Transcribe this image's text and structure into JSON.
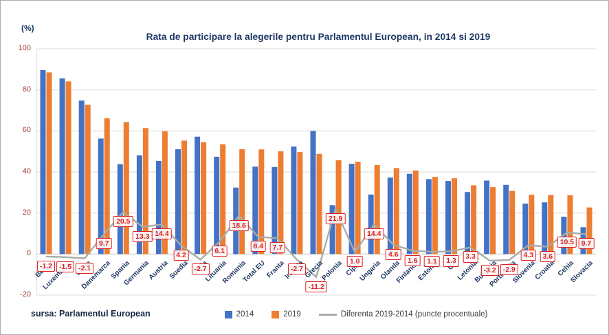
{
  "source_note": "sursa: Parlamentul European",
  "colors": {
    "bar_2014": "#4472c4",
    "bar_2019": "#ed7d31",
    "diff_line": "#a8aca7",
    "diff_label": "#e21f1f",
    "axis_tick": "#a23c35",
    "title_navy": "#1f3864",
    "grid": "#d9d9d9"
  },
  "chart_data": {
    "type": "bar",
    "title": "Rata de participare la alegerile pentru Parlamentul European, in 2014 si 2019",
    "ylabel": "(%)",
    "ylim": [
      -20,
      100
    ],
    "y_ticks": [
      100,
      80,
      60,
      40,
      20,
      0,
      -20
    ],
    "grid": true,
    "legend_position": "bottom",
    "categories": [
      "Belgia",
      "Luxemburg",
      "Malta",
      "Danemarca",
      "Spania",
      "Germania",
      "Austria",
      "Suedia",
      "Italia",
      "Lituania",
      "Romania",
      "Total EU",
      "Franta",
      "Irlanda",
      "Grecia",
      "Polonia",
      "Cipru",
      "Ungaria",
      "Olanda",
      "Finlanda",
      "Estonia",
      "UK",
      "Letonia",
      "Bulgaria",
      "Portugalia",
      "Slovenia",
      "Croatia",
      "Cehia",
      "Slovacia"
    ],
    "series": [
      {
        "name": "2014",
        "values": [
          89.6,
          85.6,
          74.8,
          56.3,
          43.8,
          48.1,
          45.4,
          51.1,
          57.2,
          47.4,
          32.4,
          42.6,
          42.4,
          52.4,
          60.0,
          23.8,
          44.0,
          29.0,
          37.3,
          39.1,
          36.5,
          35.6,
          30.2,
          35.8,
          33.7,
          24.6,
          25.2,
          18.2,
          13.1
        ]
      },
      {
        "name": "2019",
        "values": [
          88.5,
          84.1,
          72.7,
          66.1,
          64.3,
          61.4,
          59.8,
          55.3,
          54.5,
          53.5,
          51.1,
          51.0,
          50.1,
          49.7,
          48.8,
          45.7,
          45.0,
          43.4,
          41.9,
          40.7,
          37.6,
          36.9,
          33.5,
          32.6,
          30.8,
          28.9,
          28.8,
          28.7,
          22.7
        ]
      }
    ],
    "line_series": {
      "name": "Diferenta 2019-2014 (puncte procentuale)",
      "values": [
        -1.2,
        -1.5,
        -2.1,
        9.7,
        20.5,
        13.3,
        14.4,
        4.2,
        -2.7,
        6.1,
        18.6,
        8.4,
        7.7,
        -2.7,
        -11.2,
        21.9,
        1.0,
        14.4,
        4.6,
        1.6,
        1.1,
        1.3,
        3.3,
        -3.2,
        -2.9,
        4.3,
        3.6,
        10.5,
        9.7
      ]
    },
    "diff_labels": [
      "-1.2",
      "-1.5",
      "-2.1",
      "9.7",
      "20.5",
      "13.3",
      "14.4",
      "4.2",
      "-2.7",
      "6.1",
      "18.6",
      "8.4",
      "7.7",
      "-2.7",
      "-11.2",
      "21.9",
      "1.0",
      "14.4",
      "4.6",
      "1.6",
      "1.1",
      "1.3",
      "3.3",
      "-3.2",
      "-2.9",
      "4.3",
      "3.6",
      "10.5",
      "9.7"
    ],
    "legend": [
      "2014",
      "2019",
      "Diferenta 2019-2014 (puncte procentuale)"
    ]
  }
}
